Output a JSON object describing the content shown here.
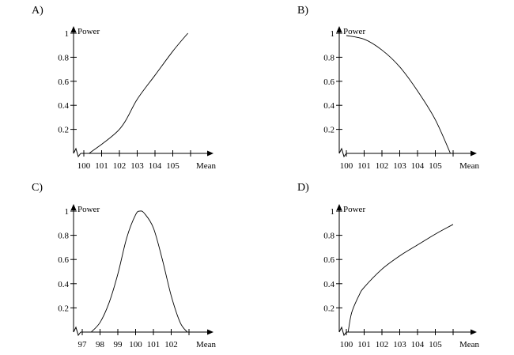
{
  "chart_data": [
    {
      "type": "line",
      "panel_label": "A)",
      "ylabel": "Power",
      "xlabel": "Mean",
      "x_ticks": [
        "100",
        "101",
        "102",
        "103",
        "104",
        "105"
      ],
      "y_ticks": [
        "0.2",
        "0.4",
        "0.6",
        "0.8",
        "1"
      ],
      "x_range": [
        100,
        106.5
      ],
      "y_range": [
        0,
        1.05
      ],
      "points": [
        [
          100.3,
          0.0
        ],
        [
          102.0,
          0.2
        ],
        [
          103.0,
          0.45
        ],
        [
          104.0,
          0.65
        ],
        [
          105.0,
          0.85
        ],
        [
          105.85,
          1.0
        ]
      ]
    },
    {
      "type": "line",
      "panel_label": "B)",
      "ylabel": "Power",
      "xlabel": "Mean",
      "x_ticks": [
        "100",
        "101",
        "102",
        "103",
        "104",
        "105"
      ],
      "y_ticks": [
        "0.2",
        "0.4",
        "0.6",
        "0.8",
        "1"
      ],
      "x_range": [
        100,
        106.5
      ],
      "y_range": [
        0,
        1.05
      ],
      "points": [
        [
          100.0,
          0.98
        ],
        [
          101.0,
          0.95
        ],
        [
          102.0,
          0.86
        ],
        [
          103.0,
          0.72
        ],
        [
          104.0,
          0.52
        ],
        [
          105.0,
          0.28
        ],
        [
          105.85,
          0.0
        ]
      ]
    },
    {
      "type": "line",
      "panel_label": "C)",
      "ylabel": "Power",
      "xlabel": "Mean",
      "x_ticks": [
        "97",
        "98",
        "99",
        "100",
        "101",
        "102"
      ],
      "y_ticks": [
        "0.2",
        "0.4",
        "0.6",
        "0.8",
        "1"
      ],
      "x_range": [
        97,
        103.5
      ],
      "y_range": [
        0,
        1.05
      ],
      "points": [
        [
          97.5,
          0.0
        ],
        [
          98.0,
          0.08
        ],
        [
          98.5,
          0.24
        ],
        [
          99.0,
          0.48
        ],
        [
          99.5,
          0.78
        ],
        [
          100.0,
          0.97
        ],
        [
          100.25,
          1.0
        ],
        [
          100.5,
          0.98
        ],
        [
          101.0,
          0.86
        ],
        [
          101.5,
          0.6
        ],
        [
          102.0,
          0.3
        ],
        [
          102.5,
          0.08
        ],
        [
          102.9,
          0.0
        ]
      ]
    },
    {
      "type": "line",
      "panel_label": "D)",
      "ylabel": "Power",
      "xlabel": "Mean",
      "x_ticks": [
        "100",
        "101",
        "102",
        "103",
        "104",
        "105"
      ],
      "y_ticks": [
        "0.2",
        "0.4",
        "0.6",
        "0.8",
        "1"
      ],
      "x_range": [
        100,
        106.5
      ],
      "y_range": [
        0,
        1.05
      ],
      "points": [
        [
          100.1,
          0.0
        ],
        [
          100.3,
          0.16
        ],
        [
          100.7,
          0.3
        ],
        [
          101.0,
          0.37
        ],
        [
          102.0,
          0.52
        ],
        [
          103.0,
          0.63
        ],
        [
          104.0,
          0.72
        ],
        [
          105.0,
          0.81
        ],
        [
          106.0,
          0.89
        ]
      ]
    }
  ]
}
